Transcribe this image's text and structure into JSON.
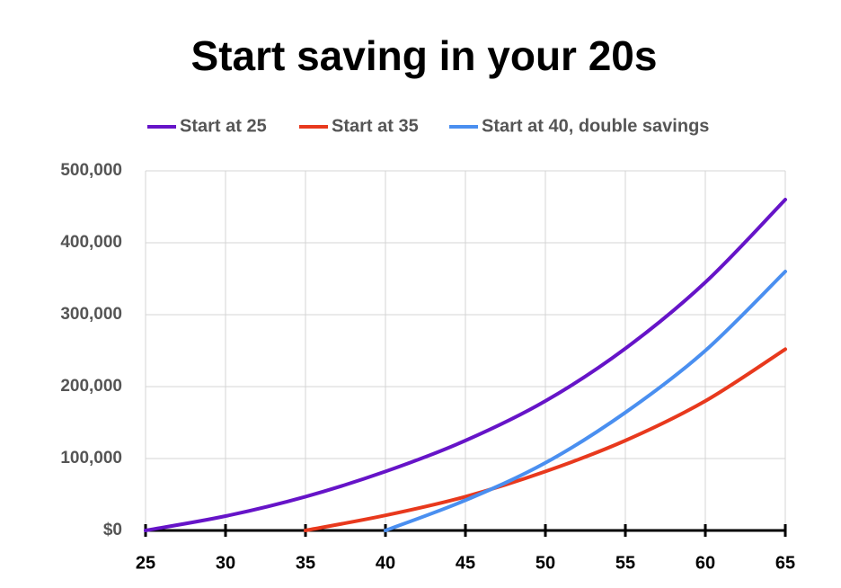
{
  "chart_data": {
    "type": "line",
    "title": "Start saving in your 20s",
    "x": [
      25,
      30,
      35,
      40,
      45,
      50,
      55,
      60,
      65
    ],
    "series": [
      {
        "name": "Start at 25",
        "color": "#6614c8",
        "values": [
          0,
          20000,
          47000,
          82000,
          125000,
          180000,
          253000,
          345000,
          460000
        ]
      },
      {
        "name": "Start at 35",
        "color": "#e8391d",
        "values": [
          null,
          null,
          0,
          21000,
          47000,
          82000,
          125000,
          180000,
          252000
        ]
      },
      {
        "name": "Start at 40, double savings",
        "color": "#4a8ff0",
        "values": [
          null,
          null,
          null,
          0,
          42000,
          94000,
          164000,
          250000,
          360000
        ]
      }
    ],
    "xlim": [
      25,
      65
    ],
    "xticks": [
      25,
      30,
      35,
      40,
      45,
      50,
      55,
      60,
      65
    ],
    "ylim": [
      0,
      500000
    ],
    "yticks": [
      {
        "value": 0,
        "label": "$0"
      },
      {
        "value": 100000,
        "label": "100,000"
      },
      {
        "value": 200000,
        "label": "200,000"
      },
      {
        "value": 300000,
        "label": "300,000"
      },
      {
        "value": 400000,
        "label": "400,000"
      },
      {
        "value": 500000,
        "label": "500,000"
      }
    ],
    "grid": true,
    "legend": "top"
  }
}
